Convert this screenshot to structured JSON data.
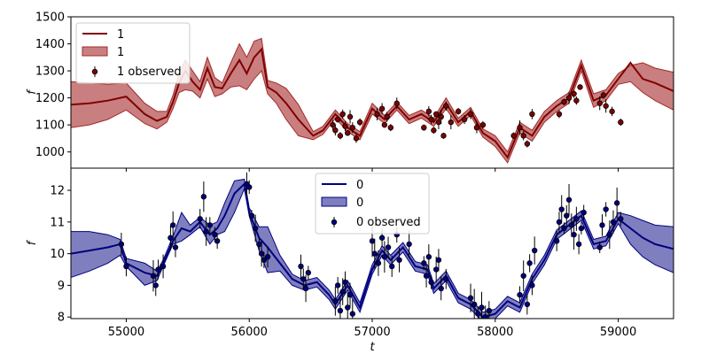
{
  "chart_data": [
    {
      "type": "line",
      "panel": "top",
      "xlabel": "",
      "ylabel": "f",
      "xlim": [
        54550,
        59450
      ],
      "ylim": [
        940,
        1500
      ],
      "yticks": [
        1000,
        1100,
        1200,
        1300,
        1400,
        1500
      ],
      "xticks": [
        55000,
        56000,
        57000,
        58000,
        59000
      ],
      "legend_position": "upper-left",
      "legend": [
        "1",
        "1",
        "1 observed"
      ],
      "colors": {
        "line": "#800000",
        "band": "#a52a2a",
        "points": "#800000"
      },
      "series": [
        {
          "name": "1",
          "kind": "model-mean",
          "x": [
            54550,
            54700,
            54850,
            55000,
            55150,
            55250,
            55330,
            55380,
            55430,
            55480,
            55540,
            55600,
            55660,
            55720,
            55780,
            55850,
            55920,
            55980,
            56040,
            56100,
            56150,
            56220,
            56300,
            56400,
            56520,
            56600,
            56700,
            56800,
            56900,
            57000,
            57100,
            57200,
            57300,
            57400,
            57500,
            57600,
            57700,
            57800,
            57900,
            58000,
            58100,
            58200,
            58300,
            58400,
            58500,
            58600,
            58700,
            58800,
            58900,
            59000,
            59100,
            59200,
            59300,
            59450
          ],
          "y": [
            1175,
            1180,
            1190,
            1205,
            1140,
            1115,
            1130,
            1185,
            1255,
            1300,
            1260,
            1230,
            1310,
            1240,
            1235,
            1290,
            1340,
            1290,
            1350,
            1380,
            1240,
            1220,
            1180,
            1120,
            1060,
            1080,
            1140,
            1090,
            1060,
            1160,
            1120,
            1170,
            1120,
            1140,
            1110,
            1180,
            1110,
            1150,
            1070,
            1040,
            980,
            1090,
            1060,
            1130,
            1170,
            1200,
            1320,
            1190,
            1210,
            1270,
            1330,
            1270,
            1255,
            1225
          ]
        },
        {
          "name": "1",
          "kind": "model-band",
          "x": [
            54550,
            54700,
            54850,
            55000,
            55150,
            55250,
            55330,
            55380,
            55430,
            55480,
            55540,
            55600,
            55660,
            55720,
            55780,
            55850,
            55920,
            55980,
            56040,
            56100,
            56150,
            56220,
            56300,
            56400,
            56520,
            56600,
            56700,
            56800,
            56900,
            57000,
            57100,
            57200,
            57300,
            57400,
            57500,
            57600,
            57700,
            57800,
            57900,
            58000,
            58100,
            58200,
            58300,
            58400,
            58500,
            58600,
            58700,
            58800,
            58900,
            59000,
            59100,
            59200,
            59300,
            59450
          ],
          "lower": [
            1090,
            1100,
            1120,
            1155,
            1105,
            1085,
            1110,
            1160,
            1220,
            1230,
            1225,
            1200,
            1270,
            1205,
            1215,
            1240,
            1245,
            1230,
            1270,
            1300,
            1215,
            1180,
            1120,
            1060,
            1045,
            1065,
            1125,
            1075,
            1045,
            1140,
            1105,
            1155,
            1105,
            1125,
            1095,
            1160,
            1095,
            1135,
            1055,
            1020,
            960,
            1070,
            1040,
            1110,
            1150,
            1180,
            1300,
            1165,
            1190,
            1250,
            1260,
            1220,
            1190,
            1155
          ],
          "upper": [
            1260,
            1255,
            1250,
            1255,
            1180,
            1150,
            1150,
            1210,
            1290,
            1340,
            1300,
            1260,
            1350,
            1275,
            1255,
            1330,
            1400,
            1350,
            1410,
            1420,
            1265,
            1255,
            1235,
            1175,
            1075,
            1095,
            1155,
            1105,
            1075,
            1180,
            1135,
            1185,
            1135,
            1155,
            1125,
            1200,
            1125,
            1165,
            1085,
            1060,
            1000,
            1110,
            1080,
            1150,
            1190,
            1220,
            1340,
            1215,
            1230,
            1290,
            1320,
            1330,
            1310,
            1295
          ]
        },
        {
          "name": "1 observed",
          "kind": "observed",
          "x": [
            56680,
            56700,
            56720,
            56740,
            56760,
            56780,
            56800,
            56820,
            56840,
            56870,
            56900,
            57040,
            57080,
            57100,
            57120,
            57150,
            57200,
            57420,
            57460,
            57480,
            57500,
            57520,
            57540,
            57560,
            57580,
            57600,
            57640,
            57700,
            57750,
            57800,
            57850,
            57900,
            58150,
            58200,
            58230,
            58260,
            58300,
            58520,
            58560,
            58600,
            58640,
            58660,
            58690,
            58850,
            58880,
            58900,
            58950,
            59020
          ],
          "y": [
            1100,
            1080,
            1120,
            1060,
            1140,
            1095,
            1070,
            1130,
            1090,
            1050,
            1110,
            1140,
            1160,
            1100,
            1130,
            1090,
            1180,
            1090,
            1150,
            1120,
            1080,
            1140,
            1110,
            1130,
            1060,
            1170,
            1110,
            1150,
            1120,
            1140,
            1090,
            1100,
            1060,
            1090,
            1060,
            1030,
            1140,
            1140,
            1185,
            1200,
            1215,
            1190,
            1240,
            1180,
            1210,
            1170,
            1150,
            1110
          ]
        }
      ]
    },
    {
      "type": "line",
      "panel": "bottom",
      "xlabel": "t",
      "ylabel": "f",
      "xlim": [
        54550,
        59450
      ],
      "ylim": [
        7.95,
        12.7
      ],
      "yticks": [
        8,
        9,
        10,
        11,
        12
      ],
      "xticks": [
        55000,
        56000,
        57000,
        58000,
        59000
      ],
      "xticklabels": [
        "55000",
        "56000",
        "57000",
        "58000",
        "59000"
      ],
      "legend_position": "upper-center",
      "legend": [
        "0",
        "0",
        "0 observed"
      ],
      "colors": {
        "line": "#000080",
        "band": "#000080",
        "points": "#000080"
      },
      "series": [
        {
          "name": "0",
          "kind": "model-mean",
          "x": [
            54550,
            54700,
            54850,
            54950,
            55000,
            55150,
            55250,
            55300,
            55380,
            55450,
            55520,
            55600,
            55680,
            55740,
            55800,
            55880,
            55960,
            56000,
            56080,
            56150,
            56250,
            56350,
            56450,
            56550,
            56650,
            56700,
            56800,
            56900,
            57000,
            57080,
            57150,
            57250,
            57350,
            57450,
            57500,
            57600,
            57700,
            57800,
            57900,
            58000,
            58100,
            58200,
            58300,
            58400,
            58500,
            58600,
            58700,
            58800,
            58900,
            59000,
            59100,
            59200,
            59300,
            59450
          ],
          "y": [
            10.0,
            10.1,
            10.2,
            10.3,
            9.7,
            9.4,
            9.3,
            9.7,
            10.4,
            10.8,
            10.7,
            11.0,
            10.6,
            10.8,
            11.2,
            11.9,
            12.2,
            11.3,
            10.5,
            10.2,
            9.7,
            9.2,
            9.0,
            9.1,
            8.7,
            8.4,
            9.0,
            8.3,
            9.5,
            10.1,
            9.8,
            10.2,
            9.6,
            9.5,
            8.9,
            9.3,
            8.6,
            8.4,
            8.0,
            8.1,
            8.5,
            8.3,
            9.2,
            9.8,
            10.6,
            10.9,
            11.2,
            10.3,
            10.4,
            11.1,
            10.8,
            10.5,
            10.3,
            10.15
          ]
        },
        {
          "name": "0",
          "kind": "model-band",
          "x": [
            54550,
            54700,
            54850,
            54950,
            55000,
            55150,
            55250,
            55300,
            55380,
            55450,
            55520,
            55600,
            55680,
            55740,
            55800,
            55880,
            55960,
            56000,
            56080,
            56150,
            56250,
            56350,
            56450,
            56550,
            56650,
            56700,
            56800,
            56900,
            57000,
            57080,
            57150,
            57250,
            57350,
            57450,
            57500,
            57600,
            57700,
            57800,
            57900,
            58000,
            58100,
            58200,
            58300,
            58400,
            58500,
            58600,
            58700,
            58800,
            58900,
            59000,
            59100,
            59200,
            59300,
            59450
          ],
          "lower": [
            9.25,
            9.45,
            9.7,
            9.95,
            9.6,
            9.0,
            9.15,
            9.6,
            10.3,
            10.4,
            10.6,
            10.85,
            10.3,
            10.6,
            10.7,
            11.3,
            12.05,
            11.2,
            10.1,
            9.4,
            9.45,
            9.0,
            8.85,
            8.95,
            8.55,
            8.25,
            8.85,
            8.15,
            9.35,
            9.95,
            9.65,
            10.05,
            9.45,
            9.35,
            8.75,
            9.15,
            8.45,
            8.25,
            7.85,
            7.95,
            8.35,
            8.15,
            9.05,
            9.65,
            10.45,
            10.75,
            11.05,
            10.15,
            10.25,
            10.95,
            10.3,
            9.9,
            9.65,
            9.4
          ]
        },
        {
          "name": "0",
          "kind": "model-band-upper",
          "x": [
            54550,
            54700,
            54850,
            54950,
            55000,
            55150,
            55250,
            55300,
            55380,
            55450,
            55520,
            55600,
            55680,
            55740,
            55800,
            55880,
            55960,
            56000,
            56080,
            56150,
            56250,
            56350,
            56450,
            56550,
            56650,
            56700,
            56800,
            56900,
            57000,
            57080,
            57150,
            57250,
            57350,
            57450,
            57500,
            57600,
            57700,
            57800,
            57900,
            58000,
            58100,
            58200,
            58300,
            58400,
            58500,
            58600,
            58700,
            58800,
            58900,
            59000,
            59100,
            59200,
            59300,
            59450
          ],
          "upper": [
            10.7,
            10.7,
            10.6,
            10.45,
            9.85,
            9.7,
            9.45,
            9.8,
            10.55,
            11.3,
            10.9,
            11.15,
            10.9,
            11.0,
            11.6,
            12.3,
            12.35,
            11.45,
            10.85,
            10.85,
            9.95,
            9.35,
            9.15,
            9.25,
            8.85,
            8.55,
            9.15,
            8.45,
            9.65,
            10.25,
            9.95,
            10.35,
            9.75,
            9.65,
            9.05,
            9.45,
            8.75,
            8.55,
            8.15,
            8.25,
            8.65,
            8.45,
            9.35,
            9.95,
            10.75,
            11.05,
            11.35,
            10.45,
            10.55,
            11.3,
            11.2,
            11.05,
            10.9,
            10.85
          ]
        },
        {
          "name": "0 observed",
          "kind": "observed",
          "x": [
            54960,
            55000,
            55220,
            55240,
            55260,
            55300,
            55360,
            55380,
            55400,
            55600,
            55630,
            55650,
            55680,
            55720,
            55740,
            55980,
            56000,
            56020,
            56050,
            56080,
            56100,
            56120,
            56150,
            56420,
            56440,
            56460,
            56480,
            56700,
            56720,
            56740,
            56760,
            56780,
            56800,
            56820,
            56840,
            57000,
            57020,
            57050,
            57080,
            57100,
            57130,
            57160,
            57200,
            57220,
            57300,
            57420,
            57440,
            57460,
            57480,
            57520,
            57540,
            57560,
            57600,
            57800,
            57830,
            57860,
            57890,
            57920,
            57950,
            58200,
            58230,
            58260,
            58280,
            58300,
            58320,
            58500,
            58520,
            58540,
            58560,
            58580,
            58600,
            58620,
            58640,
            58660,
            58680,
            58700,
            58720,
            58850,
            58870,
            58900,
            58930,
            58960,
            58990,
            59020
          ],
          "y": [
            10.3,
            9.6,
            9.3,
            9.0,
            9.5,
            9.6,
            10.5,
            10.9,
            10.2,
            11.1,
            11.8,
            10.7,
            10.9,
            10.6,
            10.4,
            12.2,
            12.1,
            11.2,
            10.8,
            10.3,
            10.0,
            9.8,
            9.9,
            9.6,
            9.2,
            8.9,
            9.4,
            8.5,
            9.0,
            8.2,
            8.8,
            9.1,
            8.3,
            8.7,
            8.1,
            10.4,
            10.0,
            9.7,
            10.5,
            9.9,
            10.2,
            9.6,
            10.6,
            9.8,
            10.3,
            9.7,
            9.3,
            9.9,
            9.1,
            9.5,
            9.8,
            8.9,
            9.2,
            8.6,
            8.4,
            8.1,
            8.3,
            8.0,
            8.2,
            8.7,
            9.3,
            8.4,
            9.7,
            9.0,
            10.1,
            10.4,
            11.0,
            11.4,
            10.8,
            11.2,
            11.7,
            10.9,
            10.6,
            11.1,
            10.3,
            10.8,
            11.3,
            10.2,
            10.9,
            11.4,
            10.6,
            11.0,
            11.6,
            11.1
          ]
        }
      ]
    }
  ]
}
